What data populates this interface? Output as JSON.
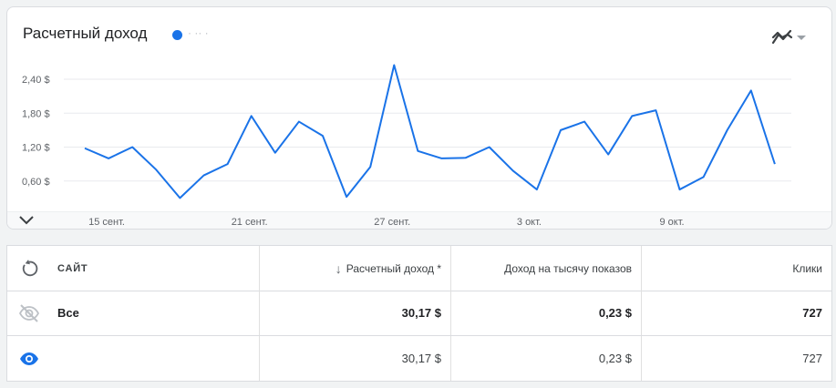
{
  "card": {
    "title": "Расчетный доход",
    "series_name": "· ·· ·"
  },
  "colors": {
    "series": "#1a73e8",
    "grid": "#e8eaed",
    "text": "#202124"
  },
  "icons": {
    "chart_type": "line-chart-icon",
    "dropdown": "arrow-drop-down-icon",
    "expand": "chevron-down-icon",
    "reset": "refresh-icon",
    "hidden": "visibility-off-icon",
    "visible": "visibility-icon"
  },
  "chart_data": {
    "type": "line",
    "title": "Расчетный доход",
    "ytick_labels": [
      "0,60 $",
      "1,20 $",
      "1,80 $",
      "2,40 $"
    ],
    "yticks": [
      0.6,
      1.2,
      1.8,
      2.4
    ],
    "ylim": [
      0,
      2.4
    ],
    "xtick_labels": [
      {
        "i": 1,
        "label": "15 сент."
      },
      {
        "i": 7,
        "label": "21 сент."
      },
      {
        "i": 13,
        "label": "27 сент."
      },
      {
        "i": 19,
        "label": "3 окт."
      },
      {
        "i": 25,
        "label": "9 окт."
      }
    ],
    "grid": true,
    "series": [
      {
        "values": [
          1.18,
          1.0,
          1.2,
          0.8,
          0.3,
          0.7,
          0.9,
          1.75,
          1.1,
          1.65,
          1.4,
          0.32,
          0.85,
          2.65,
          1.13,
          1.0,
          1.01,
          1.2,
          0.78,
          0.45,
          1.5,
          1.65,
          1.07,
          1.75,
          1.85,
          0.45,
          0.67,
          1.5,
          2.2,
          0.9
        ]
      }
    ]
  },
  "table": {
    "header": {
      "site": "САЙТ",
      "revenue": "Расчетный доход *",
      "rpm": "Доход на тысячу показов",
      "clicks": "Клики"
    },
    "rows": [
      {
        "site": "Все",
        "revenue": "30,17 $",
        "rpm": "0,23 $",
        "clicks": "727"
      },
      {
        "site": "",
        "revenue": "30,17 $",
        "rpm": "0,23 $",
        "clicks": "727"
      }
    ]
  }
}
